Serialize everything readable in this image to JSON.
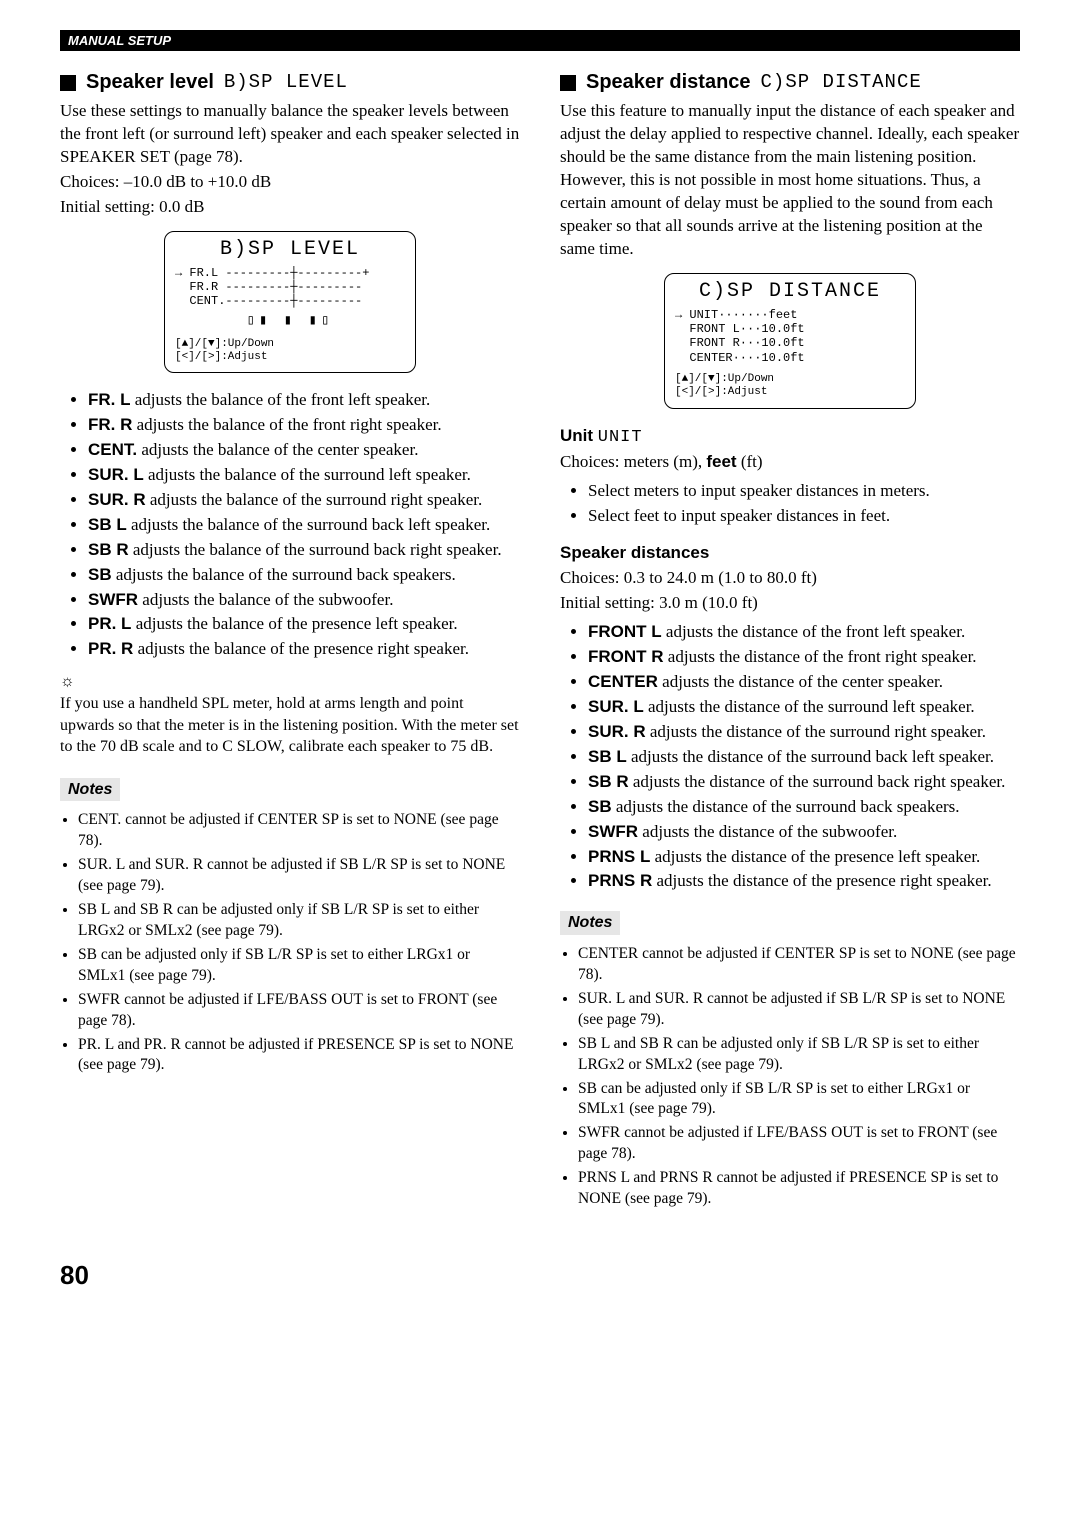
{
  "header": {
    "label": "MANUAL SETUP"
  },
  "page_number": "80",
  "left": {
    "title_bold": "Speaker level",
    "title_osd": "B)SP LEVEL",
    "intro": "Use these settings to manually balance the speaker levels between the front left (or surround left) speaker and each speaker selected in SPEAKER SET (page 78).",
    "choices": "Choices: –10.0 dB to +10.0 dB",
    "initial": "Initial setting: 0.0 dB",
    "screen": {
      "title": "B)SP LEVEL",
      "lines": "→ FR.L ---------┼---------+\n  FR.R ---------┼---------\n  CENT.---------┼---------",
      "hint": "[▲]/[▼]:Up/Down\n[<]/[>]:Adjust"
    },
    "bullets": [
      {
        "term": "FR. L",
        "desc": " adjusts the balance of the front left speaker."
      },
      {
        "term": "FR. R",
        "desc": " adjusts the balance of the front right speaker."
      },
      {
        "term": "CENT.",
        "desc": " adjusts the balance of the center speaker."
      },
      {
        "term": "SUR. L",
        "desc": " adjusts the balance of the surround left speaker."
      },
      {
        "term": "SUR. R",
        "desc": " adjusts the balance of the surround right speaker."
      },
      {
        "term": "SB L",
        "desc": " adjusts the balance of the surround back left speaker."
      },
      {
        "term": "SB R",
        "desc": " adjusts the balance of the surround back right speaker."
      },
      {
        "term": "SB",
        "desc": " adjusts the balance of the surround back speakers."
      },
      {
        "term": "SWFR",
        "desc": " adjusts the balance of the subwoofer."
      },
      {
        "term": "PR. L",
        "desc": " adjusts the balance of the presence left speaker."
      },
      {
        "term": "PR. R",
        "desc": " adjusts the balance of the presence right speaker."
      }
    ],
    "tip_icon": "☼",
    "tip": "If you use a handheld SPL meter, hold at arms length and point upwards so that the meter is in the listening position. With the meter set to the 70 dB scale and to C SLOW, calibrate each speaker to 75 dB.",
    "notes_label": "Notes",
    "notes": [
      "CENT. cannot be adjusted if CENTER SP is set to NONE (see page 78).",
      "SUR. L and SUR. R cannot be adjusted if SB L/R SP is set to NONE (see page 79).",
      "SB L and SB R can be adjusted only if SB L/R SP is set to either LRGx2 or SMLx2 (see page 79).",
      "SB can be adjusted only if SB L/R SP is set to either LRGx1 or SMLx1 (see page 79).",
      "SWFR cannot be adjusted if LFE/BASS OUT is set to FRONT (see page 78).",
      "PR. L and PR. R cannot be adjusted if PRESENCE SP is set to NONE (see page 79)."
    ]
  },
  "right": {
    "title_bold": "Speaker distance",
    "title_osd": "C)SP DISTANCE",
    "intro": "Use this feature to manually input the distance of each speaker and adjust the delay applied to respective channel. Ideally, each speaker should be the same distance from the main listening position. However, this is not possible in most home situations. Thus, a certain amount of delay must be applied to the sound from each speaker so that all sounds arrive at the listening position at the same time.",
    "screen": {
      "title": "C)SP DISTANCE",
      "lines": "→ UNIT·······feet\n  FRONT L···10.0ft\n  FRONT R···10.0ft\n  CENTER····10.0ft",
      "hint": "[▲]/[▼]:Up/Down\n[<]/[>]:Adjust"
    },
    "unit_heading": "Unit",
    "unit_osd": "UNIT",
    "unit_choices_pre": "Choices: meters (m), ",
    "unit_choices_bold": "feet",
    "unit_choices_post": " (ft)",
    "unit_bullets": [
      "Select meters to input speaker distances in meters.",
      "Select feet to input speaker distances in feet."
    ],
    "dist_heading": "Speaker distances",
    "dist_choices": "Choices: 0.3 to 24.0 m (1.0 to 80.0 ft)",
    "dist_initial": "Initial setting: 3.0 m (10.0 ft)",
    "bullets": [
      {
        "term": "FRONT L",
        "desc": " adjusts the distance of the front left speaker."
      },
      {
        "term": "FRONT R",
        "desc": " adjusts the distance of the front right speaker."
      },
      {
        "term": "CENTER",
        "desc": " adjusts the distance of the center speaker."
      },
      {
        "term": "SUR. L",
        "desc": " adjusts the distance of the surround left speaker."
      },
      {
        "term": "SUR. R",
        "desc": " adjusts the distance of the surround right speaker."
      },
      {
        "term": "SB L",
        "desc": " adjusts the distance of the surround back left speaker."
      },
      {
        "term": "SB R",
        "desc": " adjusts the distance of the surround back right speaker."
      },
      {
        "term": "SB",
        "desc": " adjusts the distance of the surround back speakers."
      },
      {
        "term": "SWFR",
        "desc": " adjusts the distance of the subwoofer."
      },
      {
        "term": "PRNS L",
        "desc": " adjusts the distance of the presence left speaker."
      },
      {
        "term": "PRNS R",
        "desc": " adjusts the distance of the presence right speaker."
      }
    ],
    "notes_label": "Notes",
    "notes": [
      "CENTER cannot be adjusted if CENTER SP is set to NONE (see page 78).",
      "SUR. L and SUR. R cannot be adjusted if SB L/R SP is set to NONE (see page 79).",
      "SB L and SB R can be adjusted only if SB L/R SP is set to either LRGx2 or SMLx2 (see page 79).",
      "SB can be adjusted only if SB L/R SP is set to either LRGx1 or SMLx1 (see page 79).",
      "SWFR cannot be adjusted if LFE/BASS OUT is set to FRONT (see page 78).",
      "PRNS L and PRNS R cannot be adjusted if PRESENCE SP is set to NONE (see page 79)."
    ]
  }
}
